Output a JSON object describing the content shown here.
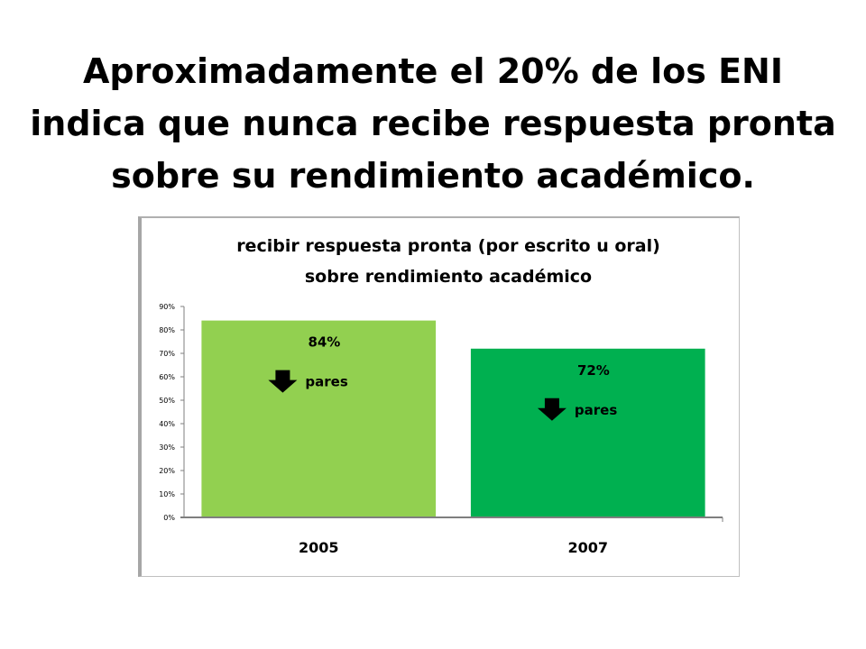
{
  "slide": {
    "title_lines": [
      "Aproximadamente el 20% de los ENI",
      "indica que nunca recibe respuesta pronta",
      "sobre su rendimiento académico."
    ]
  },
  "chart_data": {
    "type": "bar",
    "title_lines": [
      "recibir respuesta pronta (por escrito u oral)",
      "sobre rendimiento académico"
    ],
    "categories": [
      "2005",
      "2007"
    ],
    "values": [
      84,
      72
    ],
    "value_labels": [
      "84%",
      "72%"
    ],
    "annotations": [
      "pares",
      "pares"
    ],
    "annotation_icon": "down-arrow-icon",
    "bar_colors": [
      "#92d050",
      "#00b050"
    ],
    "ylim": [
      0,
      90
    ],
    "yticks": [
      "0%",
      "10%",
      "20%",
      "30%",
      "40%",
      "50%",
      "60%",
      "70%",
      "80%",
      "90%"
    ],
    "grid": false,
    "legend": "none",
    "xlabel": "",
    "ylabel": ""
  }
}
